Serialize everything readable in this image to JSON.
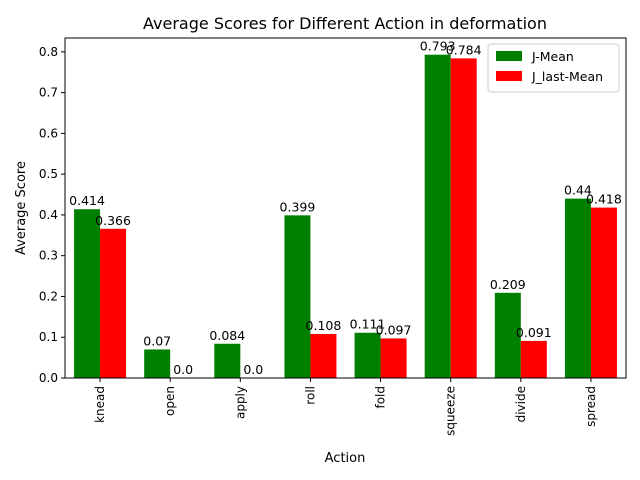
{
  "chart_data": {
    "type": "bar",
    "title": "Average Scores for Different Action in deformation",
    "xlabel": "Action",
    "ylabel": "Average Score",
    "categories": [
      "knead",
      "open",
      "apply",
      "roll",
      "fold",
      "squeeze",
      "divide",
      "spread"
    ],
    "series": [
      {
        "name": "J-Mean",
        "color": "#008000",
        "values": [
          0.414,
          0.07,
          0.084,
          0.399,
          0.111,
          0.793,
          0.209,
          0.44
        ],
        "labels": [
          "0.414",
          "0.07",
          "0.084",
          "0.399",
          "0.111",
          "0.793",
          "0.209",
          "0.44"
        ]
      },
      {
        "name": "J_last-Mean",
        "color": "#ff0000",
        "values": [
          0.366,
          0.0,
          0.0,
          0.108,
          0.097,
          0.784,
          0.091,
          0.418
        ],
        "labels": [
          "0.366",
          "0.0",
          "0.0",
          "0.108",
          "0.097",
          "0.784",
          "0.091",
          "0.418"
        ]
      }
    ],
    "ylim": [
      0,
      0.834
    ],
    "yticks": [
      0.0,
      0.1,
      0.2,
      0.3,
      0.4,
      0.5,
      0.6,
      0.7,
      0.8
    ],
    "ytick_labels": [
      "0.0",
      "0.1",
      "0.2",
      "0.3",
      "0.4",
      "0.5",
      "0.6",
      "0.7",
      "0.8"
    ],
    "grid": false,
    "legend_position": "top-right",
    "xtick_rotation": "vertical"
  }
}
